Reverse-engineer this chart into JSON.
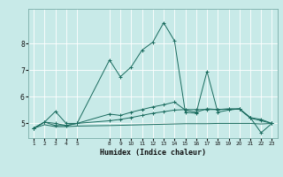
{
  "xlabel": "Humidex (Indice chaleur)",
  "background_color": "#c8eae8",
  "grid_color": "#b0d8d4",
  "line_color": "#1a6b5e",
  "xlim": [
    0.5,
    23.5
  ],
  "ylim": [
    4.45,
    9.3
  ],
  "yticks": [
    5,
    6,
    7,
    8
  ],
  "x_ticks": [
    1,
    2,
    3,
    4,
    5,
    8,
    9,
    10,
    11,
    12,
    13,
    14,
    15,
    16,
    17,
    18,
    19,
    20,
    21,
    22,
    23
  ],
  "series": [
    {
      "x": [
        1,
        2,
        3,
        4,
        5,
        8,
        9,
        10,
        11,
        12,
        13,
        14,
        15,
        16,
        17,
        18,
        19,
        20,
        21,
        22,
        23
      ],
      "y": [
        4.82,
        4.95,
        4.88,
        4.88,
        4.9,
        4.92,
        4.93,
        4.94,
        4.95,
        4.96,
        4.97,
        4.98,
        4.99,
        4.99,
        4.99,
        5.0,
        5.0,
        5.0,
        5.0,
        4.98,
        5.0
      ],
      "marker": false
    },
    {
      "x": [
        1,
        2,
        3,
        4,
        5,
        8,
        9,
        10,
        11,
        12,
        13,
        14,
        15,
        16,
        17,
        18,
        19,
        20,
        21,
        22,
        23
      ],
      "y": [
        4.82,
        5.05,
        4.92,
        4.92,
        5.0,
        5.1,
        5.15,
        5.22,
        5.3,
        5.38,
        5.44,
        5.5,
        5.52,
        5.52,
        5.52,
        5.52,
        5.53,
        5.53,
        5.2,
        5.1,
        5.0
      ],
      "marker": true
    },
    {
      "x": [
        1,
        2,
        3,
        4,
        5,
        8,
        9,
        10,
        11,
        12,
        13,
        14,
        15,
        16,
        17,
        18,
        19,
        20,
        21,
        22,
        23
      ],
      "y": [
        4.82,
        5.05,
        5.0,
        4.92,
        5.0,
        5.35,
        5.3,
        5.42,
        5.52,
        5.62,
        5.7,
        5.8,
        5.5,
        5.42,
        5.55,
        5.52,
        5.55,
        5.55,
        5.22,
        5.15,
        5.0
      ],
      "marker": true
    },
    {
      "x": [
        1,
        2,
        3,
        4,
        5,
        8,
        9,
        10,
        11,
        12,
        13,
        14,
        15,
        16,
        17,
        18,
        19,
        20,
        21,
        22,
        23
      ],
      "y": [
        4.82,
        5.05,
        5.45,
        5.0,
        5.0,
        7.38,
        6.75,
        7.12,
        7.75,
        8.05,
        8.78,
        8.1,
        5.42,
        5.38,
        6.95,
        5.42,
        5.5,
        5.55,
        5.22,
        4.65,
        5.0
      ],
      "marker": true
    }
  ]
}
